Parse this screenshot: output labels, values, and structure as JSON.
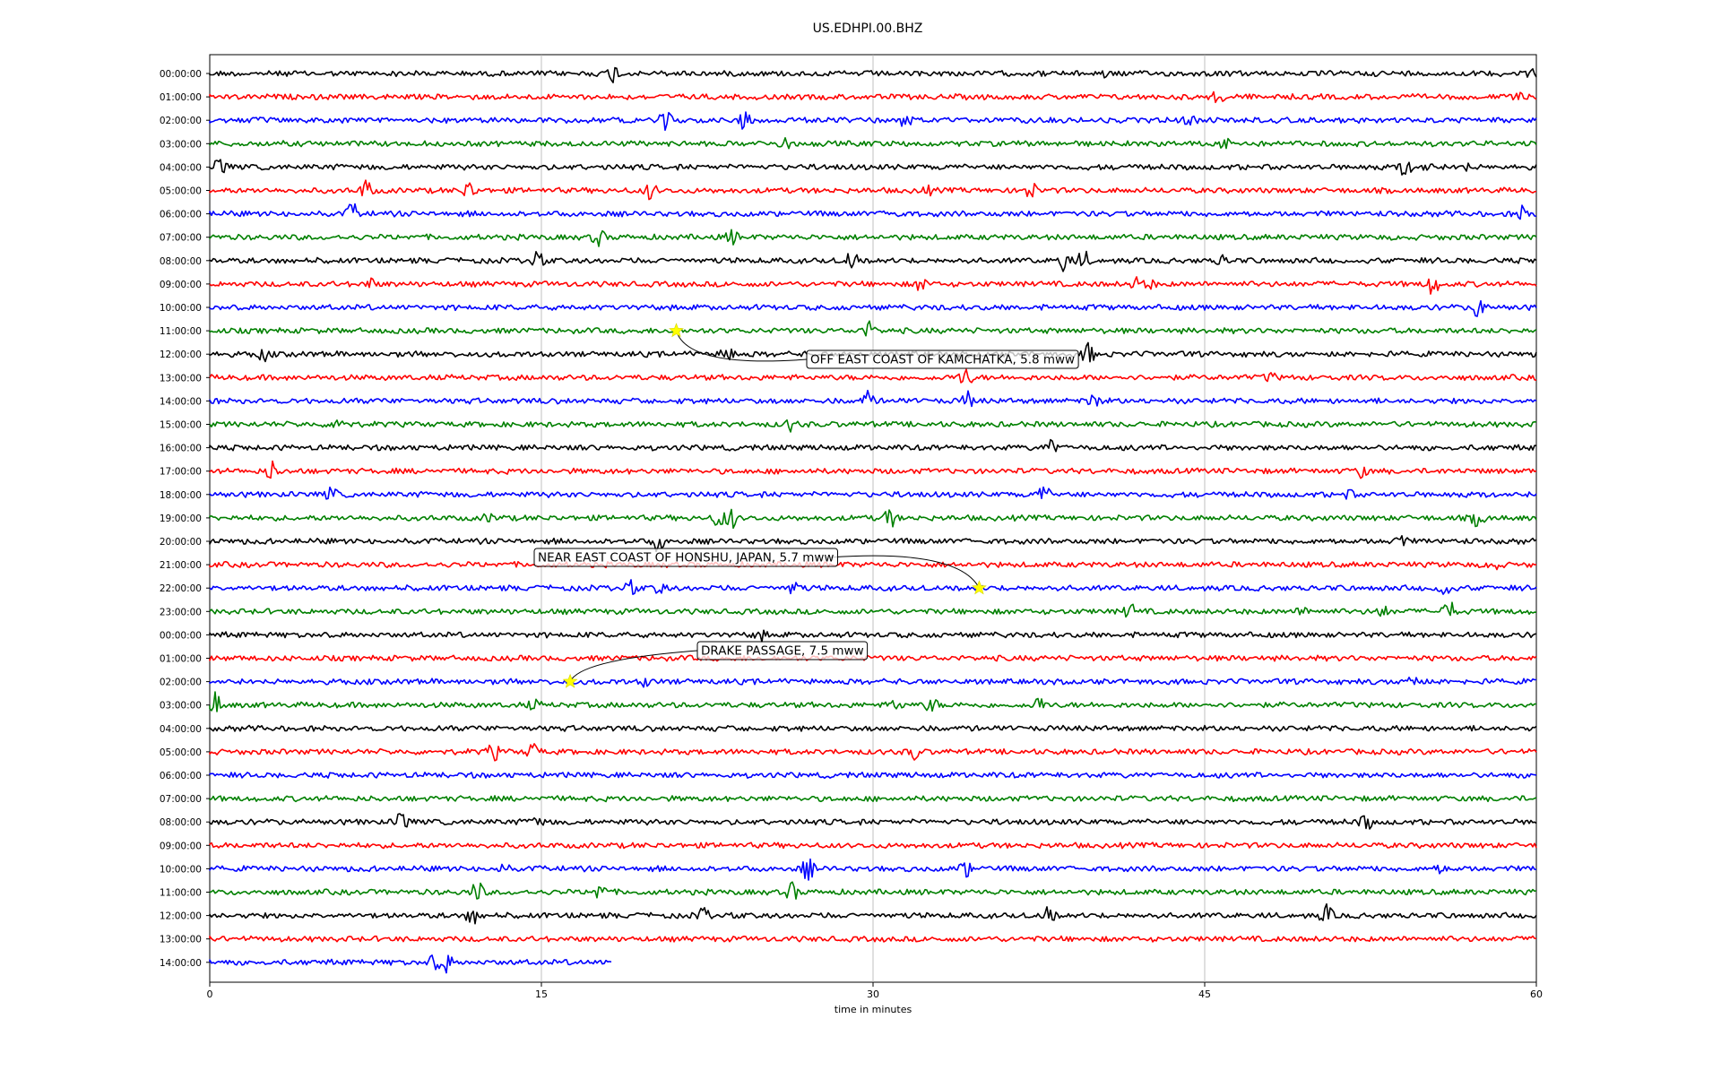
{
  "chart_data": {
    "type": "line",
    "title": "US.EDHPI.00.BHZ",
    "xlabel": "time in minutes",
    "ylabel": "",
    "xlim": [
      0,
      60
    ],
    "x_ticks": [
      "0",
      "15",
      "30",
      "45",
      "60"
    ],
    "x_tick_values": [
      0,
      15,
      30,
      45,
      60
    ],
    "grid": "vertical",
    "trace_colors": [
      "#000000",
      "#ff0000",
      "#0000ff",
      "#008000"
    ],
    "row_labels": [
      "00:00:00",
      "01:00:00",
      "02:00:00",
      "03:00:00",
      "04:00:00",
      "05:00:00",
      "06:00:00",
      "07:00:00",
      "08:00:00",
      "09:00:00",
      "10:00:00",
      "11:00:00",
      "12:00:00",
      "13:00:00",
      "14:00:00",
      "15:00:00",
      "16:00:00",
      "17:00:00",
      "18:00:00",
      "19:00:00",
      "20:00:00",
      "21:00:00",
      "22:00:00",
      "23:00:00",
      "00:00:00",
      "01:00:00",
      "02:00:00",
      "03:00:00",
      "04:00:00",
      "05:00:00",
      "06:00:00",
      "07:00:00",
      "08:00:00",
      "09:00:00",
      "10:00:00",
      "11:00:00",
      "12:00:00",
      "13:00:00",
      "14:00:00"
    ],
    "last_row_end_minute": 18.2,
    "events": [
      {
        "label": "OFF EAST COAST OF KAMCHATKA, 5.8 mww",
        "row": 11,
        "minute": 21.1
      },
      {
        "label": "NEAR EAST COAST OF HONSHU, JAPAN, 5.7 mww",
        "row": 22,
        "minute": 34.8
      },
      {
        "label": "DRAKE PASSAGE, 7.5 mww",
        "row": 26,
        "minute": 16.3
      }
    ],
    "marker_color": "#ffff00"
  }
}
